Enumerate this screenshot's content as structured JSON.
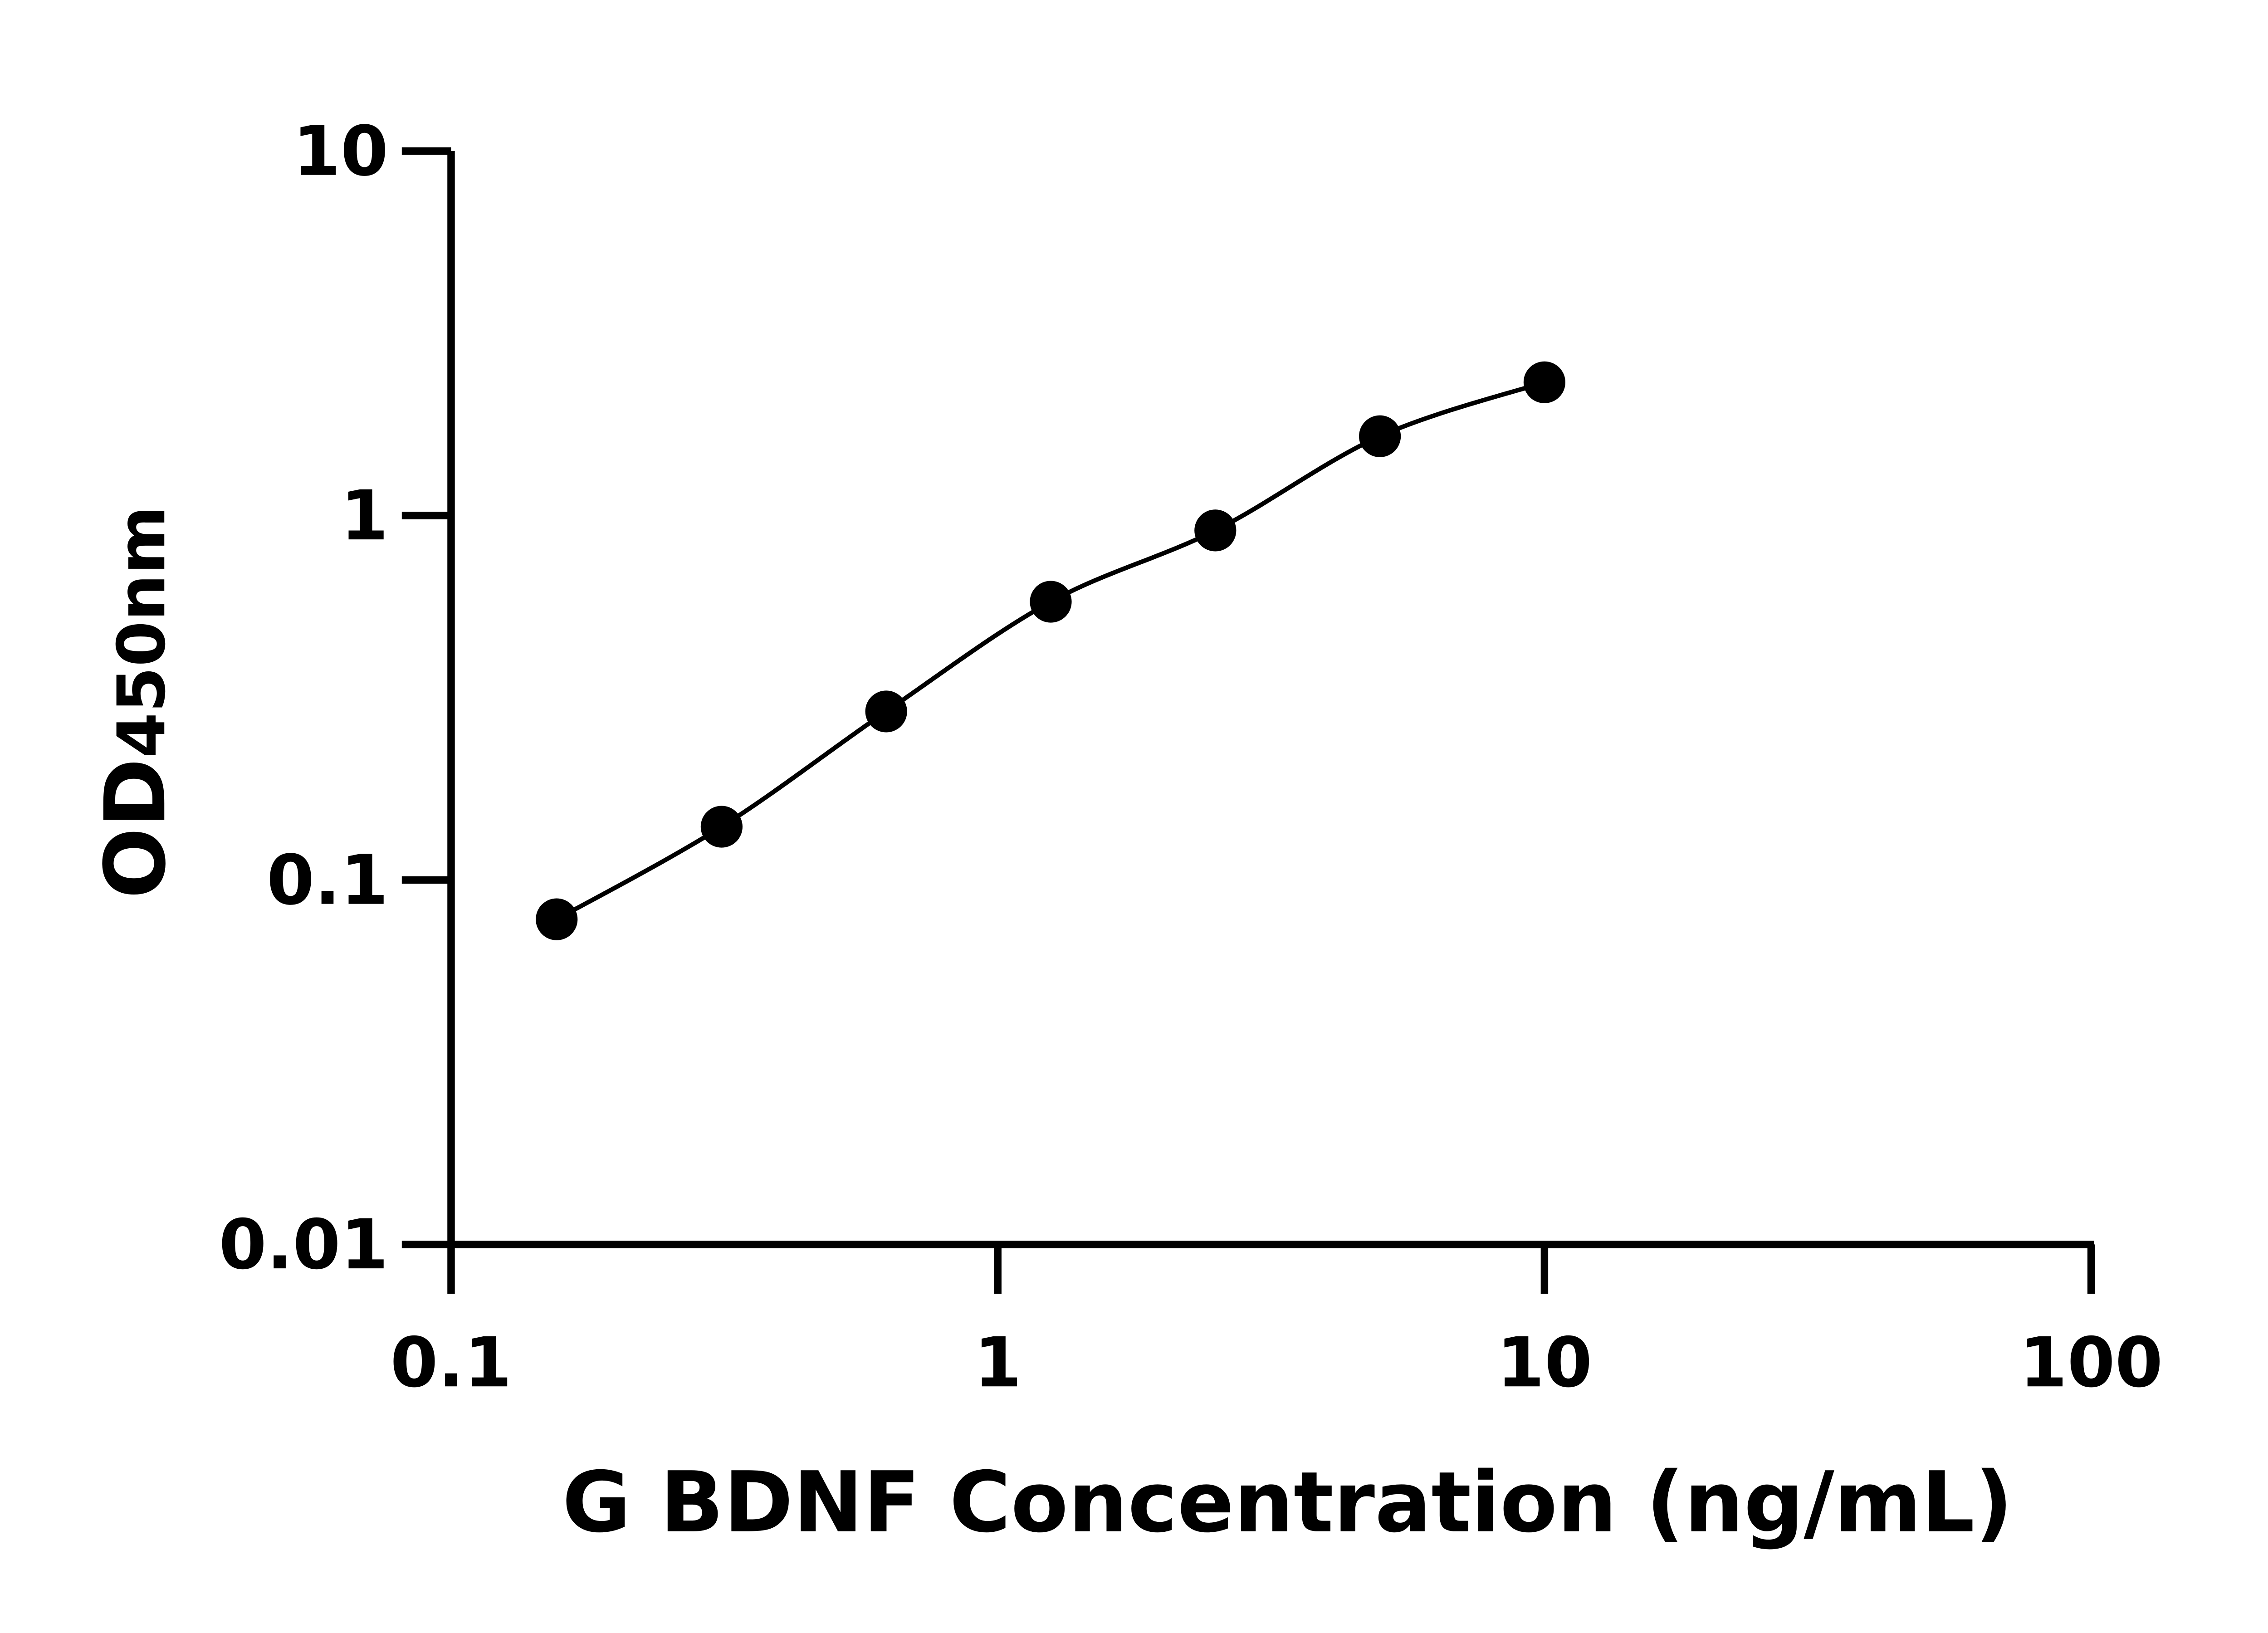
{
  "chart_data": {
    "type": "line",
    "title": "",
    "xlabel": "G BDNF Concentration (ng/mL)",
    "ylabel_main": "OD",
    "ylabel_sub": "450nm",
    "x_scale": "log",
    "y_scale": "log",
    "xlim": [
      0.1,
      100
    ],
    "ylim": [
      0.01,
      10
    ],
    "x_ticks": [
      "0.1",
      "1",
      "10",
      "100"
    ],
    "y_ticks": [
      "0.01",
      "0.1",
      "1",
      "10"
    ],
    "grid": false,
    "legend": "none",
    "colors": {
      "marker": "#000000",
      "line": "#000000",
      "axis": "#000000"
    },
    "series": [
      {
        "x": [
          0.156,
          0.3125,
          0.625,
          1.25,
          2.5,
          5,
          10
        ],
        "y": [
          0.078,
          0.14,
          0.29,
          0.58,
          0.91,
          1.65,
          2.32
        ]
      }
    ]
  }
}
